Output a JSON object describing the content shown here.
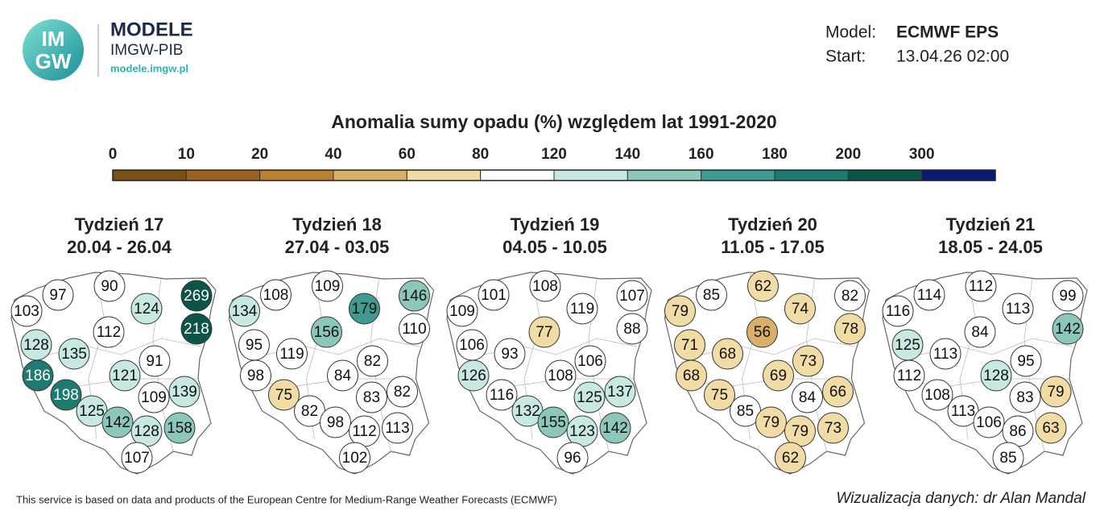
{
  "header": {
    "logo_top": "IM",
    "logo_bottom": "GW",
    "brand": "MODELE",
    "institute": "IMGW-PIB",
    "url": "modele.imgw.pl",
    "model_label": "Model:",
    "model_value": "ECMWF EPS",
    "start_label": "Start:",
    "start_value": "13.04.26 02:00"
  },
  "title": "Anomalia sumy opadu (%) względem lat 1991-2020",
  "colorbar": {
    "ticks": [
      0,
      10,
      20,
      40,
      60,
      80,
      120,
      140,
      160,
      180,
      200,
      300
    ],
    "colors": [
      "#7a4f1a",
      "#9a6322",
      "#b98131",
      "#d9b06a",
      "#f2dca5",
      "#ffffff",
      "#c8e9e1",
      "#8cc7bc",
      "#3f9b91",
      "#1f7a70",
      "#0b5447",
      "#0b1a70"
    ]
  },
  "panels": [
    {
      "title": "Tydzień 17",
      "dates": "20.04 - 26.04",
      "stations": [
        97,
        90,
        124,
        269,
        103,
        112,
        218,
        128,
        135,
        91,
        186,
        121,
        139,
        198,
        109,
        125,
        142,
        128,
        158,
        107
      ]
    },
    {
      "title": "Tydzień 18",
      "dates": "27.04 - 03.05",
      "stations": [
        108,
        109,
        179,
        146,
        134,
        156,
        110,
        95,
        119,
        82,
        98,
        84,
        82,
        75,
        83,
        82,
        98,
        112,
        113,
        102
      ]
    },
    {
      "title": "Tydzień 19",
      "dates": "04.05 - 10.05",
      "stations": [
        101,
        108,
        119,
        107,
        109,
        77,
        88,
        106,
        93,
        106,
        126,
        108,
        137,
        116,
        125,
        132,
        155,
        123,
        142,
        96
      ]
    },
    {
      "title": "Tydzień 20",
      "dates": "11.05 - 17.05",
      "stations": [
        85,
        62,
        74,
        82,
        79,
        56,
        78,
        71,
        68,
        73,
        68,
        69,
        66,
        75,
        84,
        85,
        79,
        79,
        73,
        62
      ]
    },
    {
      "title": "Tydzień 21",
      "dates": "18.05 - 24.05",
      "stations": [
        114,
        112,
        113,
        99,
        116,
        84,
        142,
        125,
        113,
        95,
        112,
        128,
        79,
        108,
        83,
        113,
        106,
        86,
        63,
        85
      ]
    }
  ],
  "footer": {
    "credit": "This service is based on data and products of the European Centre for Medium-Range Weather Forecasts (ECMWF)",
    "author": "Wizualizacja danych: dr Alan Mandal"
  }
}
